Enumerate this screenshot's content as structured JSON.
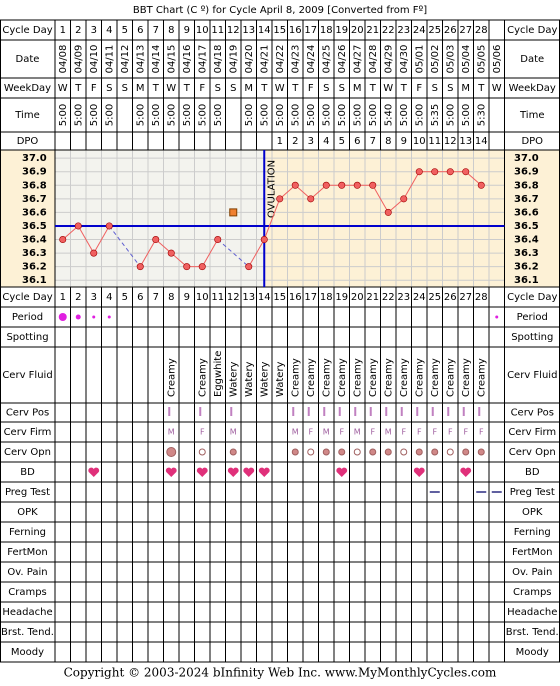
{
  "title": "BBT Chart (C º) for Cycle April 8, 2009  [Converted from Fº]",
  "footer": "Copyright © 2003-2024 bInfinity Web Inc.     www.MyMonthlyCycles.com",
  "labels": {
    "cycle_day": "Cycle Day",
    "date": "Date",
    "weekday": "WeekDay",
    "time": "Time",
    "dpo": "DPO",
    "period": "Period",
    "spotting": "Spotting",
    "cerv_fluid": "Cerv Fluid",
    "cerv_pos": "Cerv Pos",
    "cerv_firm": "Cerv Firm",
    "cerv_opn": "Cerv Opn",
    "bd": "BD",
    "preg_test": "Preg Test",
    "opk": "OPK",
    "ferning": "Ferning",
    "fertmon": "FertMon",
    "ov_pain": "Ov. Pain",
    "cramps": "Cramps",
    "headache": "Headache",
    "brst_tend": "Brst. Tend.",
    "moody": "Moody"
  },
  "cycle_days": [
    1,
    2,
    3,
    4,
    5,
    6,
    7,
    8,
    9,
    10,
    11,
    12,
    13,
    14,
    15,
    16,
    17,
    18,
    19,
    20,
    21,
    22,
    23,
    24,
    25,
    26,
    27,
    28,
    null
  ],
  "dates": [
    "04/08",
    "04/09",
    "04/10",
    "04/11",
    "04/12",
    "04/13",
    "04/14",
    "04/15",
    "04/16",
    "04/17",
    "04/18",
    "04/19",
    "04/20",
    "04/21",
    "04/22",
    "04/23",
    "04/24",
    "04/25",
    "04/26",
    "04/27",
    "04/28",
    "04/29",
    "04/30",
    "05/01",
    "05/02",
    "05/03",
    "05/04",
    "05/05",
    "05/06"
  ],
  "weekdays": [
    "W",
    "T",
    "F",
    "S",
    "S",
    "M",
    "T",
    "W",
    "T",
    "F",
    "S",
    "S",
    "M",
    "T",
    "W",
    "T",
    "F",
    "S",
    "S",
    "M",
    "T",
    "W",
    "T",
    "F",
    "S",
    "S",
    "M",
    "T",
    "W"
  ],
  "times": [
    "5:00",
    "5:00",
    "5:00",
    "5:00",
    null,
    "5:00",
    "5:00",
    "5:00",
    "5:00",
    "5:00",
    "5:00",
    null,
    "5:00",
    "5:00",
    "5:00",
    "5:00",
    "5:00",
    "5:00",
    "5:00",
    "5:00",
    "5:00",
    "5:40",
    "5:00",
    "5:00",
    "5:35",
    "5:00",
    "5:00",
    "5:30",
    null
  ],
  "dpo": [
    null,
    null,
    null,
    null,
    null,
    null,
    null,
    null,
    null,
    null,
    null,
    null,
    null,
    null,
    1,
    2,
    3,
    4,
    5,
    6,
    7,
    8,
    9,
    10,
    11,
    12,
    13,
    14,
    null
  ],
  "chart_data": {
    "type": "line",
    "annotation": "OVULATION",
    "values": [
      36.4,
      36.5,
      36.3,
      36.5,
      null,
      36.2,
      36.4,
      36.3,
      36.2,
      36.2,
      36.4,
      null,
      36.2,
      36.4,
      36.7,
      36.8,
      36.7,
      36.8,
      36.8,
      36.8,
      36.8,
      36.6,
      36.7,
      36.9,
      36.9,
      36.9,
      36.9,
      36.8,
      null
    ],
    "excluded_values": [
      null,
      null,
      null,
      null,
      null,
      null,
      null,
      null,
      null,
      null,
      null,
      36.6,
      null,
      null,
      null,
      null,
      null,
      null,
      null,
      null,
      null,
      null,
      null,
      null,
      null,
      null,
      null,
      null,
      null
    ],
    "coverline": 36.5,
    "ovulation_day": 14,
    "color": "#f06060",
    "coverline_color": "#0000cc",
    "ylim": [
      36.05,
      37.06
    ],
    "yticks": [
      {
        "value": 37,
        "label": "37.0"
      },
      36.9,
      36.8,
      36.7,
      36.6,
      36.5,
      36.4,
      36.3,
      36.2,
      36.1
    ]
  },
  "cerv_fluid": [
    null,
    null,
    null,
    null,
    null,
    null,
    null,
    "Creamy",
    null,
    "Creamy",
    "Eggwhite",
    "Watery",
    "Watery",
    "Watery",
    "Watery",
    "Creamy",
    "Creamy",
    "Creamy",
    "Creamy",
    "Creamy",
    "Creamy",
    "Creamy",
    "Creamy",
    "Creamy",
    "Creamy",
    "Creamy",
    "Creamy",
    "Creamy",
    null
  ],
  "period_days": [
    1,
    2,
    3,
    4,
    29
  ],
  "cerv_pos_days": [
    8,
    10,
    12,
    16,
    17,
    18,
    19,
    20,
    21,
    22,
    23,
    24,
    25,
    26,
    27,
    28
  ],
  "cerv_firm": [
    null,
    null,
    null,
    null,
    null,
    null,
    null,
    "M",
    null,
    "F",
    null,
    "M",
    null,
    null,
    null,
    "M",
    "F",
    "M",
    "F",
    "M",
    "F",
    "M",
    "F",
    "F",
    "F",
    "F",
    "F",
    "F",
    null
  ],
  "cerv_opn_days": [
    8,
    10,
    12,
    16,
    17,
    18,
    19,
    20,
    21,
    22,
    23,
    24,
    25,
    26,
    27,
    28
  ],
  "bd_days": [
    3,
    8,
    10,
    12,
    13,
    14,
    19,
    24,
    27
  ],
  "preg_test_days": [
    25,
    28,
    29
  ]
}
